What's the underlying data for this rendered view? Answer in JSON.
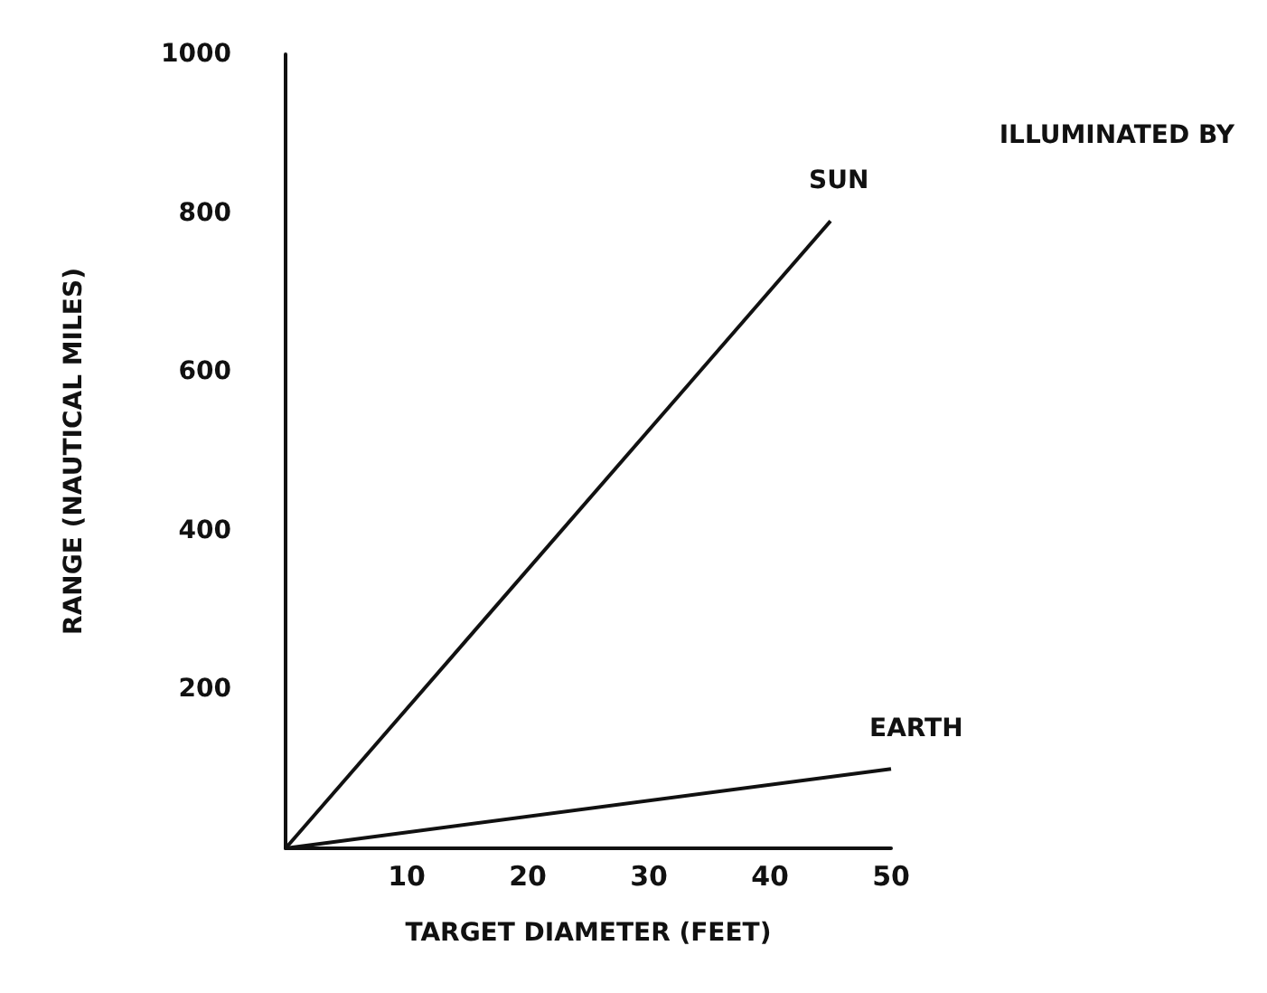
{
  "chart_data": {
    "type": "line",
    "xlabel": "TARGET DIAMETER (FEET)",
    "ylabel": "RANGE (NAUTICAL MILES)",
    "xlim": [
      0,
      50
    ],
    "ylim": [
      0,
      1000
    ],
    "xticks": [
      10,
      20,
      30,
      40,
      50
    ],
    "yticks": [
      200,
      400,
      600,
      800,
      1000
    ],
    "series": [
      {
        "name": "SUN",
        "color": "#111111",
        "x": [
          0,
          45
        ],
        "values": [
          0,
          790
        ]
      },
      {
        "name": "EARTH",
        "color": "#111111",
        "x": [
          0,
          50
        ],
        "values": [
          0,
          100
        ]
      }
    ],
    "annotations": [
      "ILLUMINATED BY"
    ],
    "grid": false,
    "legend": false,
    "marker": "none",
    "line_style": "solid"
  }
}
